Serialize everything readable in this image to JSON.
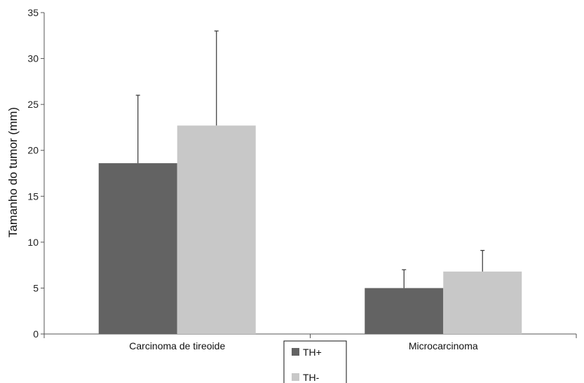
{
  "chart_data": {
    "type": "bar",
    "title": "",
    "xlabel": "",
    "ylabel": "Tamanho do tumor (mm)",
    "ylim": [
      0,
      35
    ],
    "yticks": [
      0,
      5,
      10,
      15,
      20,
      25,
      30,
      35
    ],
    "grid": false,
    "legend_position": "bottom-center",
    "categories": [
      "Carcinoma de tireoide",
      "Microcarcinoma"
    ],
    "series": [
      {
        "name": "TH+",
        "color": "#636363",
        "values": [
          18.6,
          5.0
        ],
        "error_upper": [
          26.0,
          7.0
        ]
      },
      {
        "name": "TH-",
        "color": "#c8c8c8",
        "values": [
          22.7,
          6.8
        ],
        "error_upper": [
          33.0,
          9.1
        ]
      }
    ]
  }
}
